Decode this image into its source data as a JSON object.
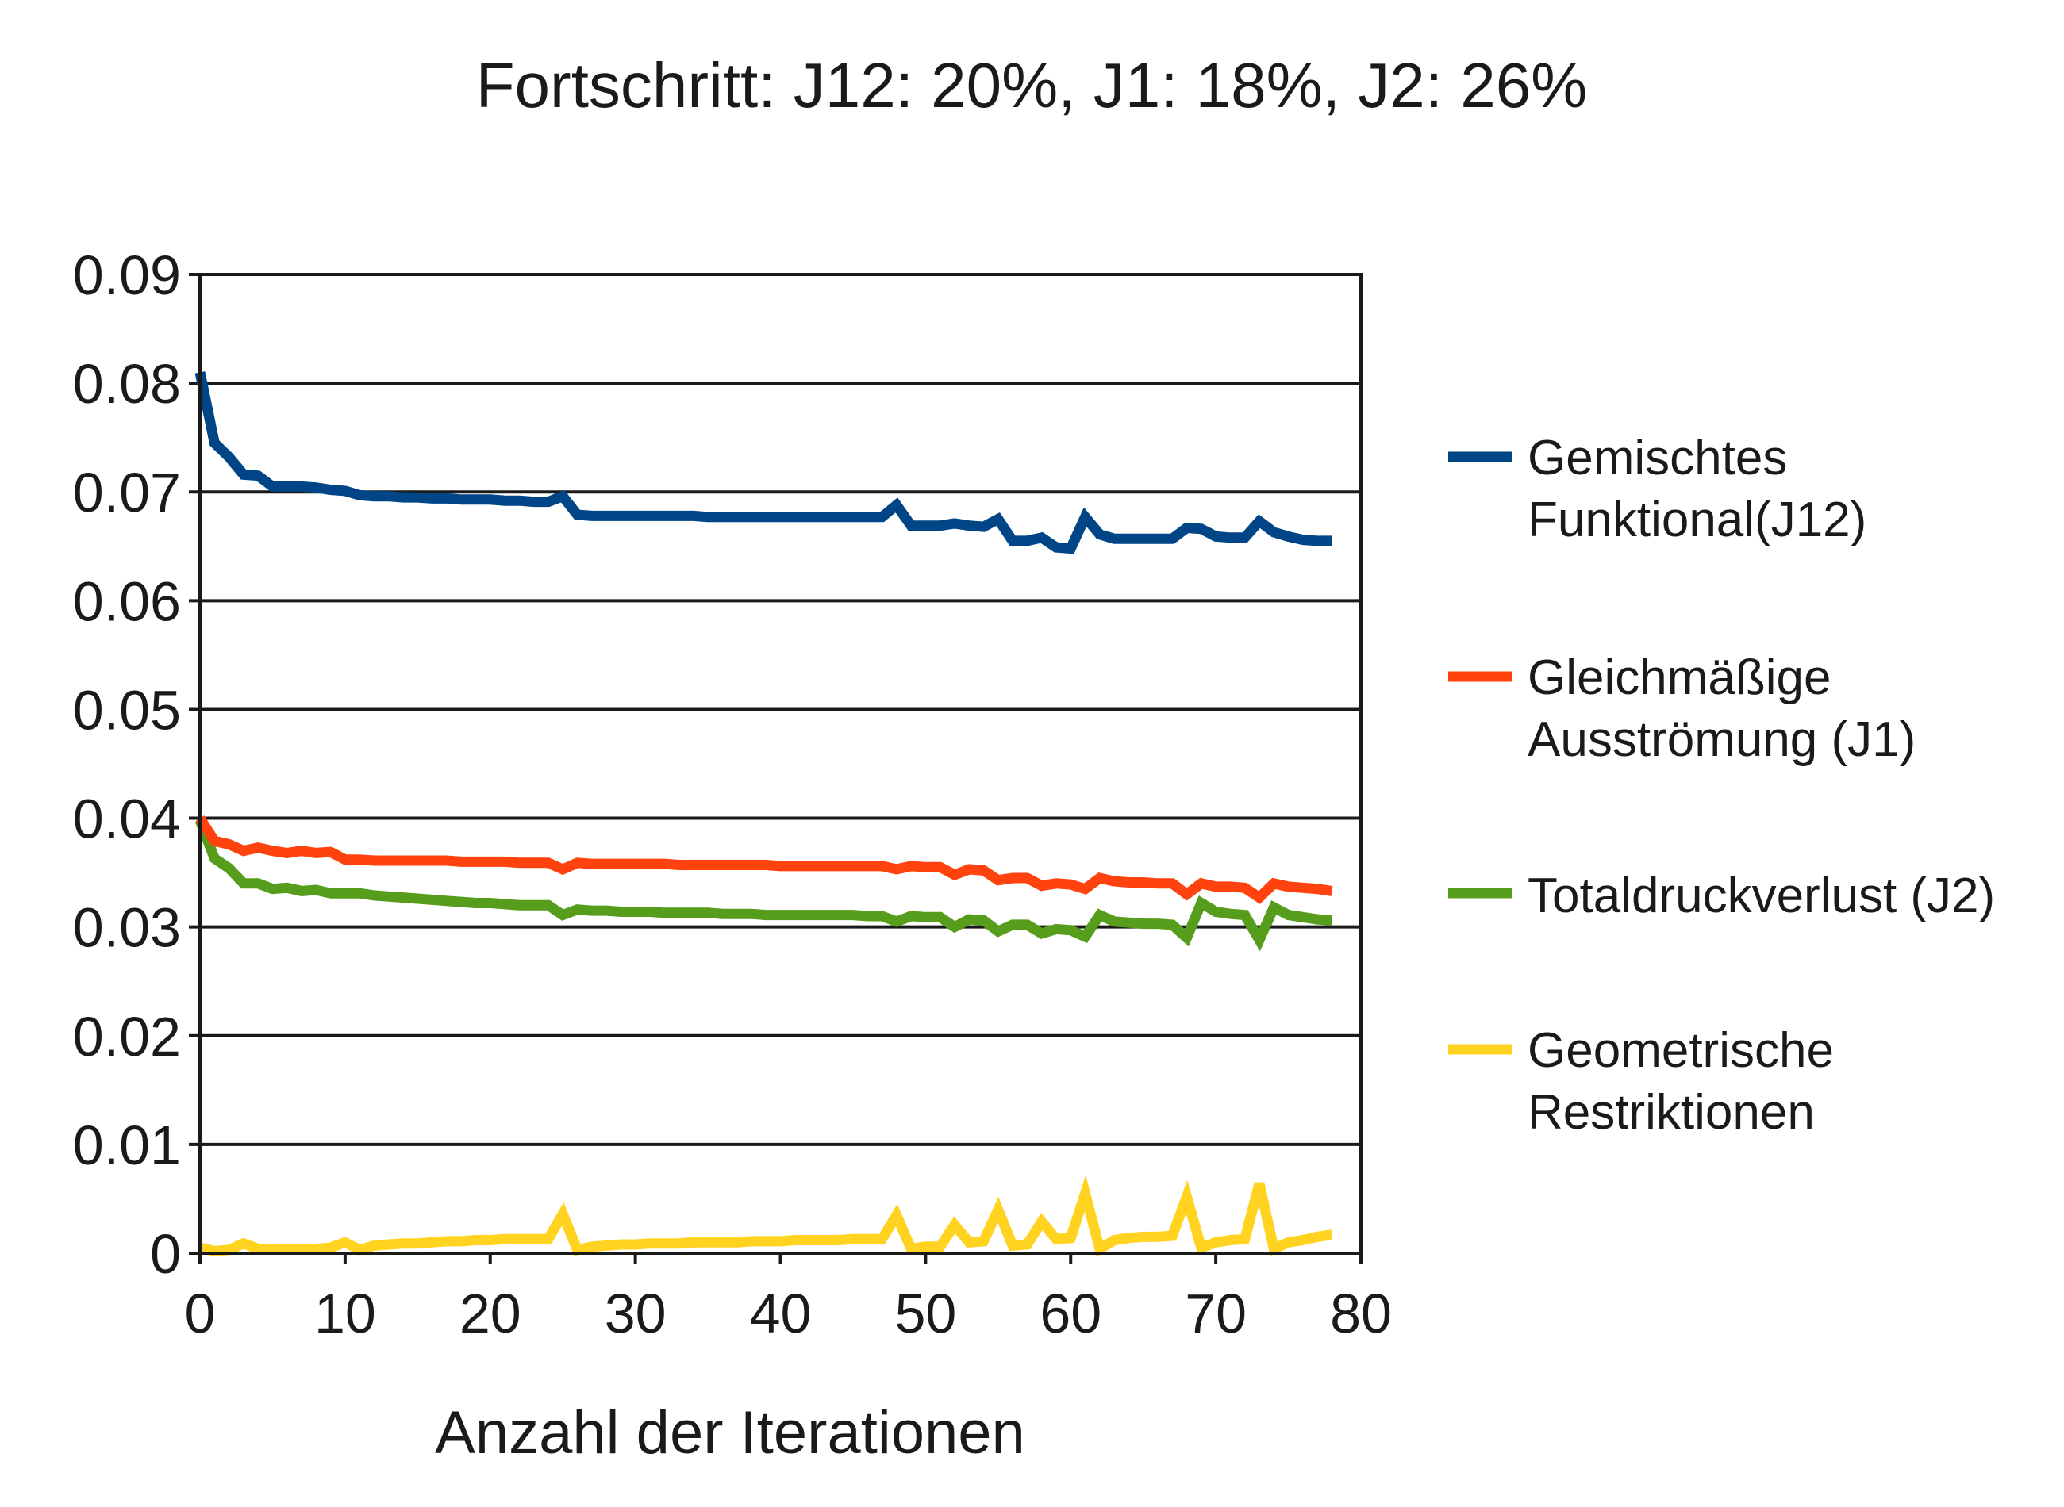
{
  "chart_data": {
    "type": "line",
    "title": "Fortschritt: J12: 20%,  J1: 18%,  J2: 26%",
    "xlabel": "Anzahl der Iterationen",
    "ylabel": "",
    "xlim": [
      0,
      80
    ],
    "ylim": [
      0,
      0.09
    ],
    "x_ticks": [
      "0",
      "10",
      "20",
      "30",
      "40",
      "50",
      "60",
      "70",
      "80"
    ],
    "y_ticks": [
      "0",
      "0.01",
      "0.02",
      "0.03",
      "0.04",
      "0.05",
      "0.06",
      "0.07",
      "0.08",
      "0.09"
    ],
    "grid": "horizontal",
    "legend_position": "right",
    "x": [
      0,
      1,
      2,
      3,
      4,
      5,
      6,
      7,
      8,
      9,
      10,
      11,
      12,
      13,
      14,
      15,
      16,
      17,
      18,
      19,
      20,
      21,
      22,
      23,
      24,
      25,
      26,
      27,
      28,
      29,
      30,
      31,
      32,
      33,
      34,
      35,
      36,
      37,
      38,
      39,
      40,
      41,
      42,
      43,
      44,
      45,
      46,
      47,
      48,
      49,
      50,
      51,
      52,
      53,
      54,
      55,
      56,
      57,
      58,
      59,
      60,
      61,
      62,
      63,
      64,
      65,
      66,
      67,
      68,
      69,
      70,
      71,
      72,
      73,
      74,
      75,
      76,
      77,
      78
    ],
    "series": [
      {
        "name": "Gemischtes Funktional(J12)",
        "color": "#004586",
        "values": [
          0.081,
          0.0745,
          0.0732,
          0.0716,
          0.0715,
          0.0705,
          0.0705,
          0.0705,
          0.0704,
          0.0702,
          0.0701,
          0.0697,
          0.0696,
          0.0696,
          0.0695,
          0.0695,
          0.0694,
          0.0694,
          0.0693,
          0.0693,
          0.0693,
          0.0692,
          0.0692,
          0.0691,
          0.0691,
          0.0696,
          0.0679,
          0.0678,
          0.0678,
          0.0678,
          0.0678,
          0.0678,
          0.0678,
          0.0678,
          0.0678,
          0.0677,
          0.0677,
          0.0677,
          0.0677,
          0.0677,
          0.0677,
          0.0677,
          0.0677,
          0.0677,
          0.0677,
          0.0677,
          0.0677,
          0.0677,
          0.0688,
          0.0669,
          0.0669,
          0.0669,
          0.0671,
          0.0669,
          0.0668,
          0.0675,
          0.0655,
          0.0655,
          0.0658,
          0.0649,
          0.0648,
          0.0677,
          0.0661,
          0.0657,
          0.0657,
          0.0657,
          0.0657,
          0.0657,
          0.0667,
          0.0666,
          0.0659,
          0.0658,
          0.0658,
          0.0673,
          0.0663,
          0.0659,
          0.0656,
          0.0655,
          0.0655
        ]
      },
      {
        "name": "Gleichmäßige Ausströmung (J1)",
        "color": "#ff420e",
        "values": [
          0.04,
          0.0379,
          0.0376,
          0.037,
          0.0373,
          0.037,
          0.0368,
          0.037,
          0.0368,
          0.0369,
          0.0362,
          0.0362,
          0.0361,
          0.0361,
          0.0361,
          0.0361,
          0.0361,
          0.0361,
          0.036,
          0.036,
          0.036,
          0.036,
          0.0359,
          0.0359,
          0.0359,
          0.0353,
          0.0359,
          0.0358,
          0.0358,
          0.0358,
          0.0358,
          0.0358,
          0.0358,
          0.0357,
          0.0357,
          0.0357,
          0.0357,
          0.0357,
          0.0357,
          0.0357,
          0.0356,
          0.0356,
          0.0356,
          0.0356,
          0.0356,
          0.0356,
          0.0356,
          0.0356,
          0.0353,
          0.0356,
          0.0355,
          0.0355,
          0.0348,
          0.0353,
          0.0352,
          0.0343,
          0.0345,
          0.0345,
          0.0338,
          0.034,
          0.0339,
          0.0335,
          0.0345,
          0.0342,
          0.0341,
          0.0341,
          0.034,
          0.034,
          0.033,
          0.034,
          0.0337,
          0.0337,
          0.0336,
          0.0327,
          0.034,
          0.0337,
          0.0336,
          0.0335,
          0.0333
        ]
      },
      {
        "name": "Totaldruckverlust (J2)",
        "color": "#579d1c",
        "values": [
          0.0398,
          0.0363,
          0.0354,
          0.034,
          0.034,
          0.0335,
          0.0336,
          0.0333,
          0.0334,
          0.0331,
          0.0331,
          0.0331,
          0.0329,
          0.0328,
          0.0327,
          0.0326,
          0.0325,
          0.0324,
          0.0323,
          0.0322,
          0.0322,
          0.0321,
          0.032,
          0.032,
          0.032,
          0.0311,
          0.0316,
          0.0315,
          0.0315,
          0.0314,
          0.0314,
          0.0314,
          0.0313,
          0.0313,
          0.0313,
          0.0313,
          0.0312,
          0.0312,
          0.0312,
          0.0311,
          0.0311,
          0.0311,
          0.0311,
          0.0311,
          0.0311,
          0.0311,
          0.031,
          0.031,
          0.0305,
          0.031,
          0.0309,
          0.0309,
          0.03,
          0.0307,
          0.0306,
          0.0296,
          0.0302,
          0.0302,
          0.0294,
          0.0298,
          0.0297,
          0.0291,
          0.0311,
          0.0305,
          0.0304,
          0.0303,
          0.0303,
          0.0302,
          0.029,
          0.0322,
          0.0314,
          0.0312,
          0.0311,
          0.0288,
          0.0318,
          0.0311,
          0.0309,
          0.0307,
          0.0306
        ]
      },
      {
        "name": "Geometrische Restriktionen",
        "color": "#ffd320",
        "values": [
          0.0005,
          0.0002,
          0.0003,
          0.0009,
          0.0004,
          0.0004,
          0.0004,
          0.0004,
          0.0004,
          0.0005,
          0.001,
          0.0003,
          0.0007,
          0.0008,
          0.0009,
          0.0009,
          0.001,
          0.0011,
          0.0011,
          0.0012,
          0.0012,
          0.0013,
          0.0013,
          0.0013,
          0.0013,
          0.0036,
          0.0003,
          0.0006,
          0.0007,
          0.0008,
          0.0008,
          0.0009,
          0.0009,
          0.0009,
          0.001,
          0.001,
          0.001,
          0.001,
          0.0011,
          0.0011,
          0.0011,
          0.0012,
          0.0012,
          0.0012,
          0.0012,
          0.0013,
          0.0013,
          0.0013,
          0.0035,
          0.0004,
          0.0006,
          0.0006,
          0.0026,
          0.001,
          0.0011,
          0.004,
          0.0007,
          0.0008,
          0.0029,
          0.0013,
          0.0014,
          0.0055,
          0.0004,
          0.0012,
          0.0014,
          0.0015,
          0.0015,
          0.0016,
          0.0052,
          0.0005,
          0.001,
          0.0012,
          0.0013,
          0.0064,
          0.0004,
          0.001,
          0.0012,
          0.0015,
          0.0017
        ]
      }
    ]
  }
}
